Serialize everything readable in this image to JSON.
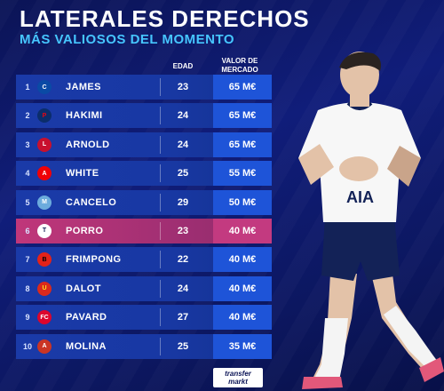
{
  "header": {
    "title": "LATERALES DERECHOS",
    "subtitle": "MÁS VALIOSOS DEL MOMENTO"
  },
  "columns": {
    "edad": "EDAD",
    "valor_line1": "VALOR DE",
    "valor_line2": "MERCADO"
  },
  "players": [
    {
      "rank": "1",
      "name": "JAMES",
      "club_icon": "chelsea-crest",
      "age": "23",
      "value": "65 M€"
    },
    {
      "rank": "2",
      "name": "HAKIMI",
      "club_icon": "psg-crest",
      "age": "24",
      "value": "65 M€"
    },
    {
      "rank": "3",
      "name": "ARNOLD",
      "club_icon": "liverpool-crest",
      "age": "24",
      "value": "65 M€"
    },
    {
      "rank": "4",
      "name": "WHITE",
      "club_icon": "arsenal-crest",
      "age": "25",
      "value": "55 M€"
    },
    {
      "rank": "5",
      "name": "CANCELO",
      "club_icon": "man-city-crest",
      "age": "29",
      "value": "50 M€"
    },
    {
      "rank": "6",
      "name": "PORRO",
      "club_icon": "tottenham-crest",
      "age": "23",
      "value": "40 M€",
      "highlight": true
    },
    {
      "rank": "7",
      "name": "FRIMPONG",
      "club_icon": "leverkusen-crest",
      "age": "22",
      "value": "40 M€"
    },
    {
      "rank": "8",
      "name": "DALOT",
      "club_icon": "man-united-crest",
      "age": "24",
      "value": "40 M€"
    },
    {
      "rank": "9",
      "name": "PAVARD",
      "club_icon": "bayern-crest",
      "age": "27",
      "value": "40 M€"
    },
    {
      "rank": "10",
      "name": "MOLINA",
      "club_icon": "atletico-crest",
      "age": "25",
      "value": "35 M€"
    }
  ],
  "brand": {
    "line1": "transfer",
    "line2": "markt"
  },
  "colors": {
    "background": "#101d7a",
    "row": "#1838a3",
    "highlight_row": "#c0377a",
    "value_box": "#1e54d8",
    "subtitle": "#46c6ff"
  }
}
